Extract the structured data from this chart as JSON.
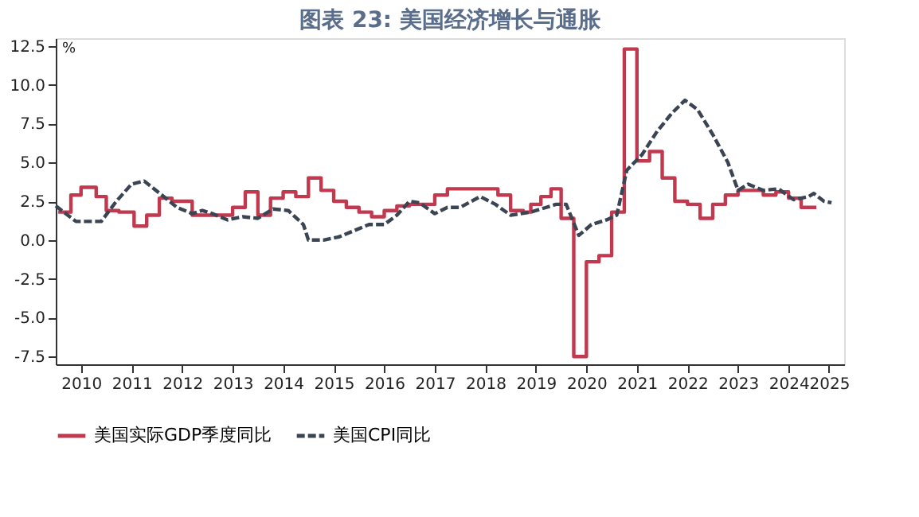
{
  "chart_data": {
    "type": "line",
    "title": "图表 23: 美国经济增长与通胀",
    "ylabel": "%",
    "xlim": [
      2010,
      2025.6
    ],
    "ylim": [
      -8,
      13
    ],
    "xticks": [
      {
        "value": 2010.5,
        "label": "2010"
      },
      {
        "value": 2011.5,
        "label": "2011"
      },
      {
        "value": 2012.5,
        "label": "2012"
      },
      {
        "value": 2013.5,
        "label": "2013"
      },
      {
        "value": 2014.5,
        "label": "2014"
      },
      {
        "value": 2015.5,
        "label": "2015"
      },
      {
        "value": 2016.5,
        "label": "2016"
      },
      {
        "value": 2017.5,
        "label": "2017"
      },
      {
        "value": 2018.5,
        "label": "2018"
      },
      {
        "value": 2019.5,
        "label": "2019"
      },
      {
        "value": 2020.5,
        "label": "2020"
      },
      {
        "value": 2021.5,
        "label": "2021"
      },
      {
        "value": 2022.5,
        "label": "2022"
      },
      {
        "value": 2023.5,
        "label": "2023"
      },
      {
        "value": 2024.5,
        "label": "2024"
      },
      {
        "value": 2025.3,
        "label": "2025"
      }
    ],
    "yticks": [
      {
        "value": 12.5,
        "label": "12.5"
      },
      {
        "value": 10,
        "label": "10.0"
      },
      {
        "value": 7.5,
        "label": "7.5"
      },
      {
        "value": 5,
        "label": "5.0"
      },
      {
        "value": 2.5,
        "label": "2.5"
      },
      {
        "value": 0,
        "label": "0.0"
      },
      {
        "value": -2.5,
        "label": "-2.5"
      },
      {
        "value": -5,
        "label": "-5.0"
      },
      {
        "value": -7.5,
        "label": "-7.5"
      }
    ],
    "grid": false,
    "legend": "bottom",
    "series": [
      {
        "name": "美国实际GDP季度同比",
        "type": "step",
        "color": "#c0394f",
        "line_style": "solid",
        "x": [
          2010.05,
          2010.3,
          2010.5,
          2010.8,
          2011.0,
          2011.25,
          2011.55,
          2011.8,
          2012.05,
          2012.3,
          2012.7,
          2013.5,
          2013.75,
          2014.0,
          2014.25,
          2014.5,
          2014.75,
          2015.0,
          2015.25,
          2015.5,
          2015.75,
          2016.0,
          2016.25,
          2016.5,
          2016.75,
          2017.0,
          2017.5,
          2017.75,
          2018.75,
          2019.0,
          2019.25,
          2019.4,
          2019.6,
          2019.8,
          2020.0,
          2020.25,
          2020.5,
          2020.75,
          2021.0,
          2021.25,
          2021.5,
          2021.75,
          2022.0,
          2022.25,
          2022.5,
          2022.75,
          2023.0,
          2023.25,
          2023.5,
          2024.0,
          2024.25,
          2024.5,
          2024.75,
          2025.05
        ],
        "values": [
          1.8,
          2.9,
          3.4,
          2.8,
          1.9,
          1.8,
          0.9,
          1.6,
          2.7,
          2.5,
          1.6,
          2.1,
          3.1,
          1.6,
          2.7,
          3.1,
          2.8,
          4.0,
          3.2,
          2.5,
          2.1,
          1.8,
          1.5,
          1.9,
          2.2,
          2.3,
          2.9,
          3.3,
          2.9,
          1.9,
          1.8,
          2.3,
          2.8,
          3.3,
          1.4,
          -7.5,
          -1.4,
          -1.0,
          1.8,
          12.3,
          5.1,
          5.7,
          4.0,
          2.5,
          2.3,
          1.4,
          2.3,
          2.9,
          3.2,
          2.9,
          3.1,
          2.7,
          2.1,
          2.1
        ]
      },
      {
        "name": "美国CPI同比",
        "color": "#3b4452",
        "line_style": "dashed",
        "x": [
          2010.0,
          2010.4,
          2010.9,
          2011.2,
          2011.5,
          2011.75,
          2012.1,
          2012.4,
          2012.7,
          2012.9,
          2013.1,
          2013.4,
          2013.7,
          2014.0,
          2014.2,
          2014.3,
          2014.6,
          2014.9,
          2015.0,
          2015.3,
          2015.6,
          2015.9,
          2016.2,
          2016.5,
          2016.75,
          2017.0,
          2017.2,
          2017.5,
          2017.75,
          2018.0,
          2018.4,
          2018.7,
          2019.0,
          2019.4,
          2019.9,
          2020.1,
          2020.35,
          2020.6,
          2020.9,
          2021.1,
          2021.3,
          2021.6,
          2021.9,
          2022.2,
          2022.45,
          2022.7,
          2023.0,
          2023.3,
          2023.5,
          2023.7,
          2024.0,
          2024.3,
          2024.6,
          2024.9,
          2025.0,
          2025.2,
          2025.35
        ],
        "values": [
          2.2,
          1.2,
          1.2,
          2.5,
          3.6,
          3.8,
          2.9,
          2.1,
          1.7,
          1.9,
          1.7,
          1.3,
          1.5,
          1.4,
          1.8,
          2.0,
          1.9,
          1.0,
          0.0,
          0.0,
          0.2,
          0.6,
          1.0,
          1.0,
          1.6,
          2.5,
          2.4,
          1.7,
          2.1,
          2.1,
          2.8,
          2.3,
          1.6,
          1.8,
          2.3,
          2.3,
          0.3,
          1.0,
          1.3,
          1.6,
          4.5,
          5.5,
          7.0,
          8.2,
          9.0,
          8.4,
          6.8,
          5.0,
          3.2,
          3.6,
          3.2,
          3.3,
          2.6,
          2.8,
          3.0,
          2.5,
          2.4
        ]
      }
    ]
  }
}
